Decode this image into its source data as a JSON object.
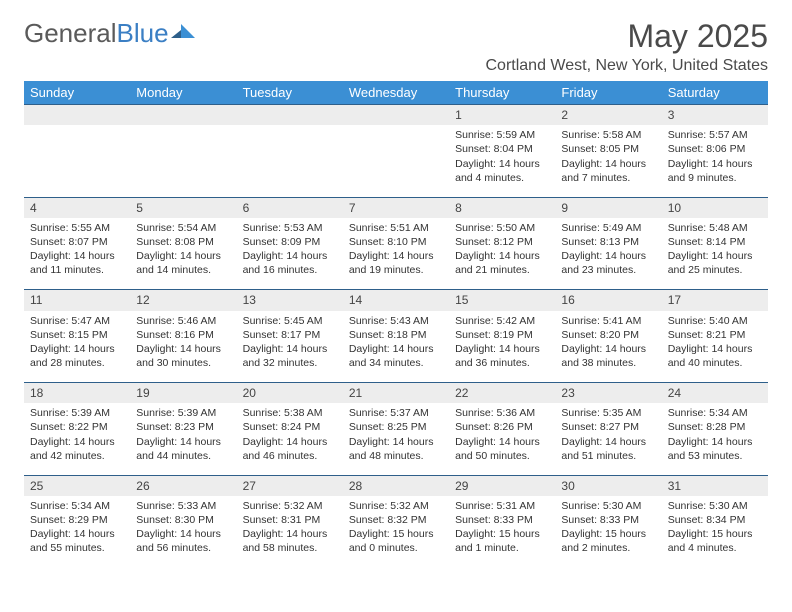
{
  "logo": {
    "text1": "General",
    "text2": "Blue"
  },
  "title": "May 2025",
  "location": "Cortland West, New York, United States",
  "header_bg": "#3b8fd4",
  "header_fg": "#ffffff",
  "daynum_bg": "#ededed",
  "border_color": "#2e5f8a",
  "weekdays": [
    "Sunday",
    "Monday",
    "Tuesday",
    "Wednesday",
    "Thursday",
    "Friday",
    "Saturday"
  ],
  "weeks": [
    {
      "nums": [
        "",
        "",
        "",
        "",
        "1",
        "2",
        "3"
      ],
      "details": [
        "",
        "",
        "",
        "",
        "Sunrise: 5:59 AM\nSunset: 8:04 PM\nDaylight: 14 hours and 4 minutes.",
        "Sunrise: 5:58 AM\nSunset: 8:05 PM\nDaylight: 14 hours and 7 minutes.",
        "Sunrise: 5:57 AM\nSunset: 8:06 PM\nDaylight: 14 hours and 9 minutes."
      ]
    },
    {
      "nums": [
        "4",
        "5",
        "6",
        "7",
        "8",
        "9",
        "10"
      ],
      "details": [
        "Sunrise: 5:55 AM\nSunset: 8:07 PM\nDaylight: 14 hours and 11 minutes.",
        "Sunrise: 5:54 AM\nSunset: 8:08 PM\nDaylight: 14 hours and 14 minutes.",
        "Sunrise: 5:53 AM\nSunset: 8:09 PM\nDaylight: 14 hours and 16 minutes.",
        "Sunrise: 5:51 AM\nSunset: 8:10 PM\nDaylight: 14 hours and 19 minutes.",
        "Sunrise: 5:50 AM\nSunset: 8:12 PM\nDaylight: 14 hours and 21 minutes.",
        "Sunrise: 5:49 AM\nSunset: 8:13 PM\nDaylight: 14 hours and 23 minutes.",
        "Sunrise: 5:48 AM\nSunset: 8:14 PM\nDaylight: 14 hours and 25 minutes."
      ]
    },
    {
      "nums": [
        "11",
        "12",
        "13",
        "14",
        "15",
        "16",
        "17"
      ],
      "details": [
        "Sunrise: 5:47 AM\nSunset: 8:15 PM\nDaylight: 14 hours and 28 minutes.",
        "Sunrise: 5:46 AM\nSunset: 8:16 PM\nDaylight: 14 hours and 30 minutes.",
        "Sunrise: 5:45 AM\nSunset: 8:17 PM\nDaylight: 14 hours and 32 minutes.",
        "Sunrise: 5:43 AM\nSunset: 8:18 PM\nDaylight: 14 hours and 34 minutes.",
        "Sunrise: 5:42 AM\nSunset: 8:19 PM\nDaylight: 14 hours and 36 minutes.",
        "Sunrise: 5:41 AM\nSunset: 8:20 PM\nDaylight: 14 hours and 38 minutes.",
        "Sunrise: 5:40 AM\nSunset: 8:21 PM\nDaylight: 14 hours and 40 minutes."
      ]
    },
    {
      "nums": [
        "18",
        "19",
        "20",
        "21",
        "22",
        "23",
        "24"
      ],
      "details": [
        "Sunrise: 5:39 AM\nSunset: 8:22 PM\nDaylight: 14 hours and 42 minutes.",
        "Sunrise: 5:39 AM\nSunset: 8:23 PM\nDaylight: 14 hours and 44 minutes.",
        "Sunrise: 5:38 AM\nSunset: 8:24 PM\nDaylight: 14 hours and 46 minutes.",
        "Sunrise: 5:37 AM\nSunset: 8:25 PM\nDaylight: 14 hours and 48 minutes.",
        "Sunrise: 5:36 AM\nSunset: 8:26 PM\nDaylight: 14 hours and 50 minutes.",
        "Sunrise: 5:35 AM\nSunset: 8:27 PM\nDaylight: 14 hours and 51 minutes.",
        "Sunrise: 5:34 AM\nSunset: 8:28 PM\nDaylight: 14 hours and 53 minutes."
      ]
    },
    {
      "nums": [
        "25",
        "26",
        "27",
        "28",
        "29",
        "30",
        "31"
      ],
      "details": [
        "Sunrise: 5:34 AM\nSunset: 8:29 PM\nDaylight: 14 hours and 55 minutes.",
        "Sunrise: 5:33 AM\nSunset: 8:30 PM\nDaylight: 14 hours and 56 minutes.",
        "Sunrise: 5:32 AM\nSunset: 8:31 PM\nDaylight: 14 hours and 58 minutes.",
        "Sunrise: 5:32 AM\nSunset: 8:32 PM\nDaylight: 15 hours and 0 minutes.",
        "Sunrise: 5:31 AM\nSunset: 8:33 PM\nDaylight: 15 hours and 1 minute.",
        "Sunrise: 5:30 AM\nSunset: 8:33 PM\nDaylight: 15 hours and 2 minutes.",
        "Sunrise: 5:30 AM\nSunset: 8:34 PM\nDaylight: 15 hours and 4 minutes."
      ]
    }
  ]
}
